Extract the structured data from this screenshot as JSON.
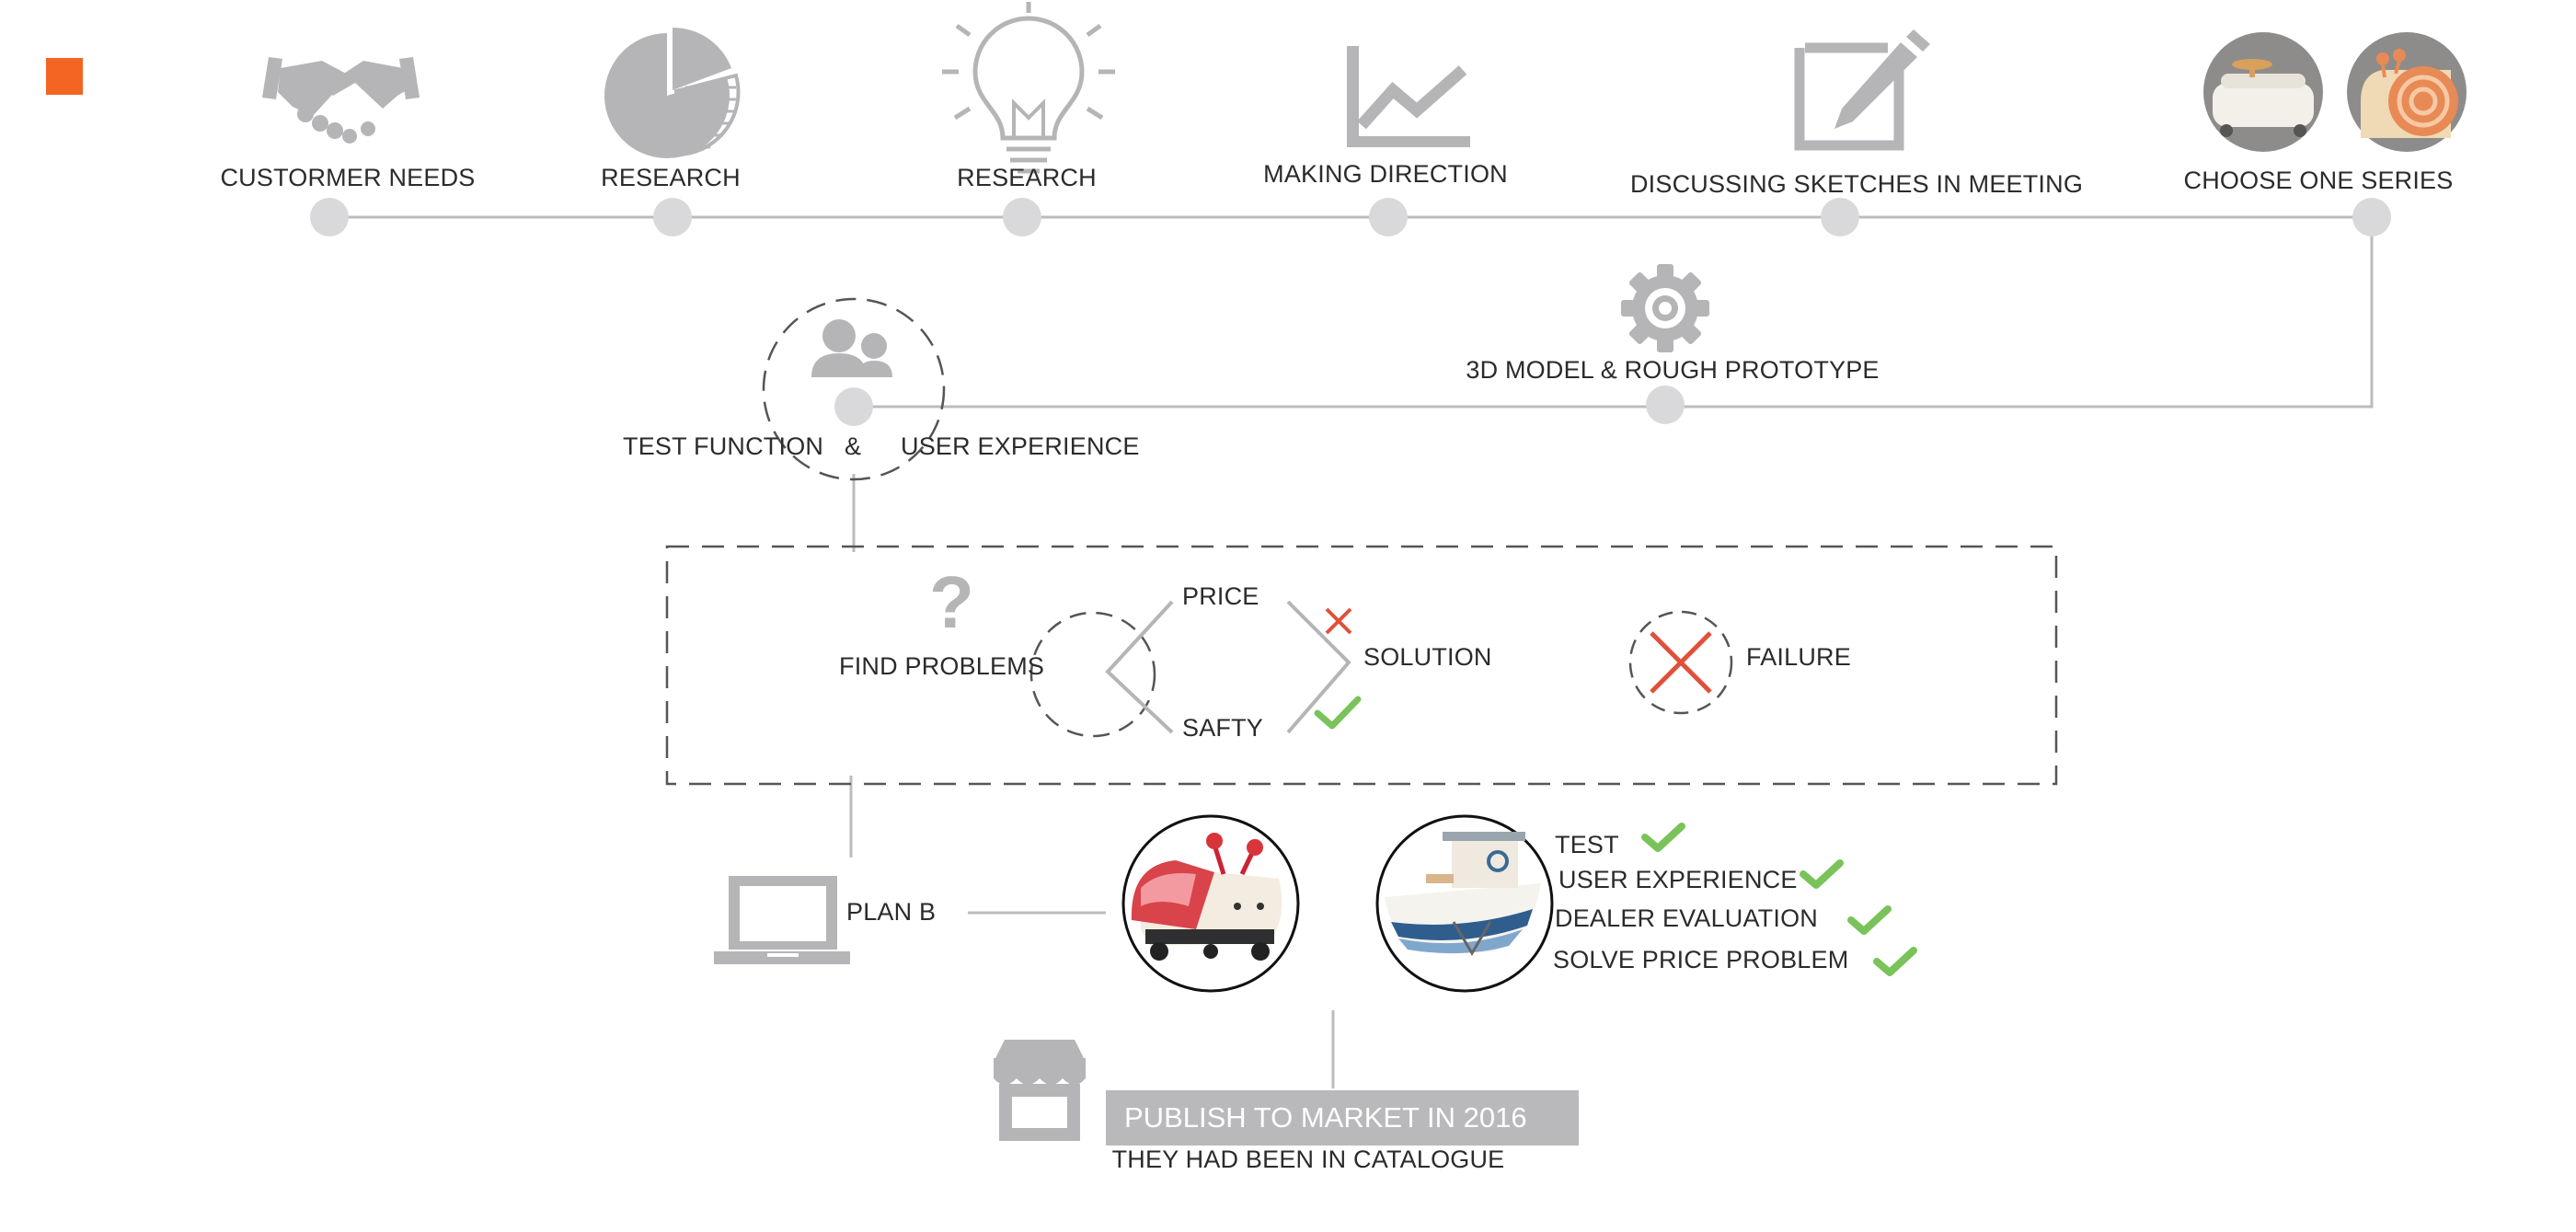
{
  "colors": {
    "accent": "#f26522",
    "icon_gray": "#b5b5b7",
    "line_gray": "#bcbcbe",
    "check_green": "#79c35a",
    "cross_red": "#e0503a"
  },
  "timeline": {
    "steps": [
      {
        "label": "CUSTORMER NEEDS",
        "icon": "handshake-icon"
      },
      {
        "label": "RESEARCH",
        "icon": "pie-chart-icon"
      },
      {
        "label": "RESEARCH",
        "icon": "lightbulb-icon"
      },
      {
        "label": "MAKING DIRECTION",
        "icon": "line-chart-icon"
      },
      {
        "label": "DISCUSSING SKETCHES IN MEETING",
        "icon": "edit-note-icon"
      },
      {
        "label": "CHOOSE ONE SERIES",
        "icon": "toy-photos"
      }
    ],
    "return_steps": [
      {
        "label": "3D MODEL & ROUGH PROTOTYPE",
        "icon": "gear-icon"
      }
    ]
  },
  "test": {
    "label_left": "TEST  FUNCTION",
    "amp": "&",
    "label_right": "USER EXPERIENCE",
    "icon": "users-icon"
  },
  "problems": {
    "question_mark": "?",
    "find_label": "FIND PROBLEMS",
    "price": "PRICE",
    "safety": "SAFTY",
    "solution": "SOLUTION",
    "failure": "FAILURE"
  },
  "plan_b": {
    "label": "PLAN B",
    "icon": "laptop-icon"
  },
  "checklist": [
    {
      "label": "TEST",
      "done": true
    },
    {
      "label": "USER EXPERIENCE",
      "done": true
    },
    {
      "label": "DEALER EVALUATION",
      "done": true
    },
    {
      "label": "SOLVE PRICE  PROBLEM",
      "done": true
    }
  ],
  "publish": {
    "banner": "PUBLISH TO MARKET IN 2016",
    "caption": "THEY HAD BEEN IN CATALOGUE",
    "icon": "store-icon"
  }
}
